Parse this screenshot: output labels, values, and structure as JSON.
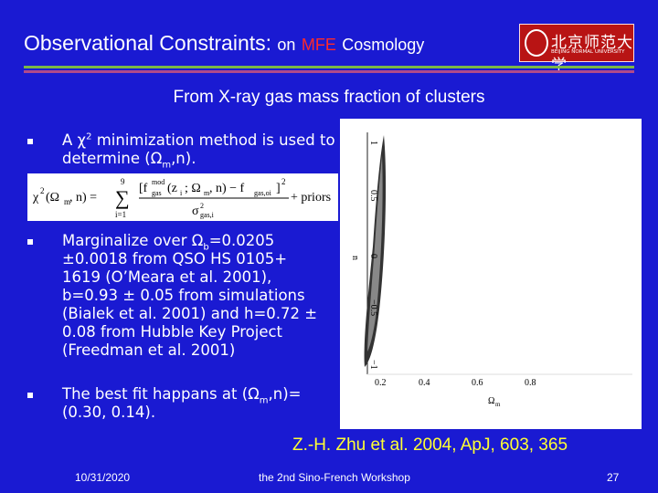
{
  "header": {
    "title": "Observational Constraints:",
    "on": "on",
    "mfe": "MFE",
    "cosmology": "Cosmology",
    "logo_text": "北京师范大学",
    "logo_subtext": "BEIJING NORMAL UNIVERSITY"
  },
  "subtitle": "From X-ray gas mass fraction of clusters",
  "bullets": [
    [
      "A ",
      "χ",
      "2",
      " minimization method is used to determine (",
      "Ω",
      "m",
      ",n)."
    ],
    [
      "Marginalize over ",
      "Ω",
      "b",
      "=0.0205 ±0.0018 from QSO HS 0105+ 1619 (O’Meara et al. 2001), b=0.93 ± 0.05 from simulations (Bialek et al. 2001) and h=0.72 ± 0.08 from Hubble Key Project (Freedman et al. 2001)"
    ],
    [
      "The best fit happans at (",
      "Ω",
      "m",
      ",n)= (0.30, 0.14)."
    ]
  ],
  "formula": {
    "lhs": "χ",
    "lhs_sup": "2",
    "lhs_args": "(Ω",
    "lhs_sub": "m",
    "lhs_end": ", n) =",
    "sum_top": "9",
    "sum": "∑",
    "sum_bottom": "i=1",
    "num_open": "[f",
    "num_sup": "mod",
    "num_sub": "gas",
    "num_args": "(z",
    "num_zi": "i",
    "num_mid": "; Ω",
    "num_m": "m",
    "num_mid2": ", n) − f",
    "num_sub2": "gas,oi",
    "num_close": "]",
    "num_pow": "2",
    "den": "σ",
    "den_sup": "2",
    "den_sub": "gas,i",
    "priors": "+ priors"
  },
  "plot": {
    "yticks": [
      "1",
      "0.5",
      "0",
      "−0.5",
      "−1"
    ],
    "ylabel": "n",
    "xticks": [
      "0.2",
      "0.4",
      "0.6",
      "0.8"
    ],
    "xlabel": "Ω",
    "xlabel_sub": "m"
  },
  "citation": "Z.-H. Zhu et al. 2004, ApJ, 603, 365",
  "footer": {
    "date": "10/31/2020",
    "event": "the 2nd Sino-French Workshop",
    "page": "27"
  }
}
